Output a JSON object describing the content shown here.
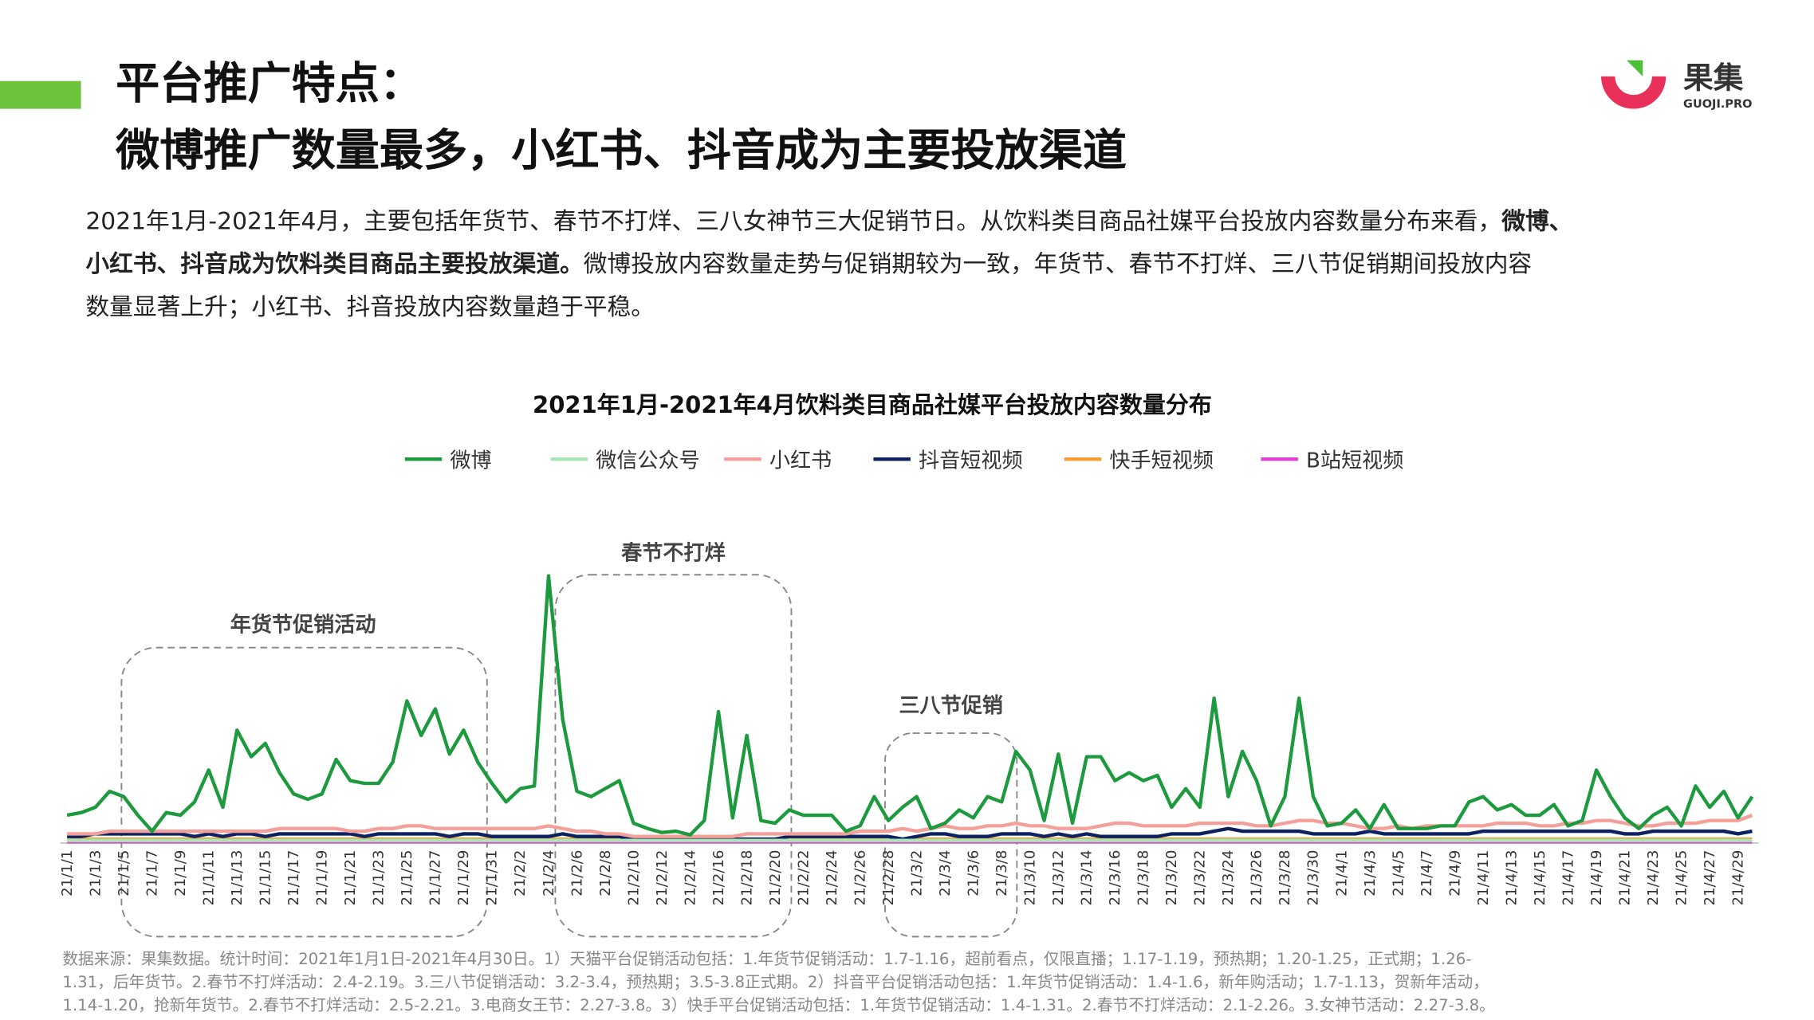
{
  "header": {
    "title_line1": "平台推广特点：",
    "title_line2": "微博推广数量最多，小红书、抖音成为主要投放渠道",
    "logo_text": "果集",
    "logo_sub": "GUOJI.PRO"
  },
  "intro": [
    [
      {
        "text": "2021年1月-2021年4月，主要包括年货节、春节不打烊、三八女神节三大促销节日。从饮料类目商品社媒平台投放内容数量分布来看，",
        "bold": false
      },
      {
        "text": "微博、",
        "bold": true
      }
    ],
    [
      {
        "text": "小红书、抖音成为饮料类目商品主要投放渠道。",
        "bold": true
      },
      {
        "text": "微博投放内容数量走势与促销期较为一致，年货节、春节不打烊、三八节促销期间投放内容",
        "bold": false
      }
    ],
    [
      {
        "text": "数量显著上升；小红书、抖音投放内容数量趋于平稳。",
        "bold": false
      }
    ]
  ],
  "chart_data": {
    "type": "line",
    "title": "2021年1月-2021年4月饮料类目商品社媒平台投放内容数量分布",
    "annotations": [
      "年货节促销活动",
      "春节不打烊",
      "三八节促销"
    ],
    "categories": [
      "21/1/1",
      null,
      "21/1/3",
      null,
      "21/1/5",
      null,
      "21/1/7",
      null,
      "21/1/9",
      null,
      "21/1/11",
      null,
      "21/1/13",
      null,
      "21/1/15",
      null,
      "21/1/17",
      null,
      "21/1/19",
      null,
      "21/1/21",
      null,
      "21/1/23",
      null,
      "21/1/25",
      null,
      "21/1/27",
      null,
      "21/1/29",
      null,
      "21/1/31",
      null,
      "21/2/2",
      null,
      "21/2/4",
      null,
      "21/2/6",
      null,
      "21/2/8",
      null,
      "21/2/10",
      null,
      "21/2/12",
      null,
      "21/2/14",
      null,
      "21/2/16",
      null,
      "21/2/18",
      null,
      "21/2/20",
      null,
      "21/2/22",
      null,
      "21/2/24",
      null,
      "21/2/26",
      null,
      "21/2/28",
      null,
      "21/3/2",
      null,
      "21/3/4",
      null,
      "21/3/6",
      null,
      "21/3/8",
      null,
      "21/3/10",
      null,
      "21/3/12",
      null,
      "21/3/14",
      null,
      "21/3/16",
      null,
      "21/3/18",
      null,
      "21/3/20",
      null,
      "21/3/22",
      null,
      "21/3/24",
      null,
      "21/3/26",
      null,
      "21/3/28",
      null,
      "21/3/30",
      null,
      "21/4/1",
      null,
      "21/4/3",
      null,
      "21/4/5",
      null,
      "21/4/7",
      null,
      "21/4/9",
      null,
      "21/4/11",
      null,
      "21/4/13",
      null,
      "21/4/15",
      null,
      "21/4/17",
      null,
      "21/4/19",
      null,
      "21/4/21",
      null,
      "21/4/23",
      null,
      "21/4/25",
      null,
      "21/4/27",
      null,
      "21/4/29",
      null
    ],
    "ylim": [
      0,
      100
    ],
    "series": [
      {
        "name": "微博",
        "color": "#1e9a3e",
        "values": [
          10,
          11,
          13,
          19,
          17,
          10,
          4,
          11,
          10,
          15,
          27,
          13,
          42,
          32,
          37,
          26,
          18,
          16,
          18,
          31,
          23,
          22,
          22,
          30,
          53,
          40,
          50,
          33,
          42,
          30,
          22,
          15,
          20,
          21,
          100,
          46,
          19,
          17,
          20,
          23,
          7,
          5,
          3.5,
          4,
          2.6,
          8,
          49,
          9,
          40,
          8,
          7,
          12,
          10,
          10,
          10,
          4,
          6,
          17,
          8,
          13,
          17,
          5,
          7,
          12,
          9,
          17,
          15,
          34,
          27,
          8,
          33,
          7,
          32,
          32,
          23,
          26,
          23,
          25,
          13,
          20,
          13,
          54,
          17,
          34,
          23,
          6,
          17,
          54,
          17,
          6,
          7,
          12,
          5,
          14,
          5,
          5,
          5,
          6,
          6,
          15,
          17,
          12,
          14,
          10,
          10,
          14,
          6,
          8,
          27,
          17,
          9,
          5,
          10,
          13,
          6,
          21,
          13,
          19,
          9,
          17
        ]
      },
      {
        "name": "微信公众号",
        "color": "#a8e6b8",
        "values": [
          0.5,
          0.5,
          0.5,
          0.5,
          0.5,
          0.5,
          0.5,
          0.5,
          0.5,
          0.5,
          0.5,
          0.5,
          0.5,
          0.5,
          0.5,
          0.5,
          0.5,
          0.5,
          0.5,
          0.5,
          0.5,
          0.5,
          0.5,
          0.5,
          0.5,
          0.5,
          0.5,
          0.5,
          0.5,
          0.5,
          0.5,
          0.5,
          0.5,
          0.5,
          0.5,
          0.5,
          0.5,
          0.5,
          0.5,
          0.5,
          0.5,
          0.5,
          0.5,
          0.5,
          0.5,
          0.5,
          0.5,
          0.5,
          0.5,
          0.5,
          0.5,
          0.5,
          0.5,
          0.5,
          0.5,
          0.5,
          0.5,
          0.5,
          0.5,
          0.5,
          0.5,
          0.5,
          0.5,
          0.5,
          0.5,
          0.5,
          0.5,
          0.5,
          0.5,
          0.5,
          0.5,
          0.5,
          0.5,
          0.5,
          0.5,
          0.5,
          0.5,
          0.5,
          0.5,
          0.5,
          0.5,
          0.5,
          0.5,
          0.5,
          0.5,
          0.5,
          0.5,
          0.5,
          0.5,
          0.5,
          0.5,
          0.5,
          0.5,
          0.5,
          0.5,
          0.5,
          0.5,
          0.5,
          0.5,
          0.5,
          0.5,
          0.5,
          0.5,
          0.5,
          0.5,
          0.5,
          0.5,
          0.5,
          0.5,
          0.5,
          0.5,
          0.5,
          0.5,
          0.5,
          0.5,
          0.5,
          0.5,
          0.5,
          0.5,
          0.5
        ]
      },
      {
        "name": "小红书",
        "color": "#f4a09a",
        "values": [
          3,
          3,
          3,
          4,
          4,
          4,
          4,
          4,
          4,
          4,
          4,
          4,
          4,
          4,
          4,
          5,
          5,
          5,
          5,
          5,
          4,
          4,
          5,
          5,
          6,
          6,
          5,
          5,
          5,
          5,
          5,
          5,
          5,
          5,
          6,
          5,
          4,
          4,
          3,
          3,
          2,
          2,
          2,
          2,
          2,
          2,
          2,
          2,
          3,
          3,
          3,
          3,
          3,
          3,
          3,
          3,
          4,
          4,
          4,
          5,
          4,
          5,
          6,
          5,
          5,
          6,
          6,
          7,
          6,
          6,
          5,
          5,
          5,
          6,
          7,
          7,
          6,
          6,
          6,
          6,
          7,
          7,
          7,
          7,
          6,
          6,
          7,
          8,
          8,
          7,
          7,
          6,
          5,
          5,
          6,
          5,
          6,
          6,
          6,
          6,
          6,
          7,
          7,
          7,
          6,
          6,
          7,
          7,
          8,
          8,
          7,
          6,
          6,
          7,
          7,
          7,
          8,
          8,
          8,
          10
        ]
      },
      {
        "name": "抖音短视频",
        "color": "#0d2060",
        "values": [
          2,
          2,
          3,
          3,
          3,
          3,
          3,
          3,
          3,
          2,
          3,
          2,
          3,
          3,
          2,
          3,
          3,
          3,
          3,
          3,
          3,
          2,
          3,
          3,
          3,
          3,
          3,
          2,
          3,
          3,
          2,
          2,
          2,
          2,
          2,
          3,
          2,
          2,
          2,
          2,
          1,
          1,
          1,
          1,
          1,
          1,
          1,
          1,
          1,
          1,
          1,
          2,
          2,
          2,
          2,
          2,
          2,
          2,
          2,
          1,
          2,
          3,
          3,
          2,
          2,
          2,
          3,
          3,
          3,
          2,
          3,
          2,
          3,
          2,
          2,
          2,
          2,
          2,
          3,
          3,
          3,
          4,
          5,
          4,
          4,
          4,
          4,
          4,
          3,
          3,
          3,
          3,
          4,
          3,
          3,
          3,
          3,
          3,
          3,
          3,
          4,
          4,
          4,
          4,
          4,
          4,
          4,
          4,
          4,
          4,
          3,
          3,
          4,
          4,
          4,
          4,
          4,
          4,
          3,
          4
        ]
      },
      {
        "name": "快手短视频",
        "color": "#f5a030",
        "values": [
          1,
          1,
          1,
          1,
          1,
          1,
          1,
          1,
          1,
          1,
          1,
          1,
          1,
          1,
          1,
          1,
          1,
          1,
          1,
          1,
          1,
          1,
          1,
          1,
          1,
          1,
          1,
          1,
          1,
          1,
          1,
          1,
          1,
          1,
          1,
          1,
          1,
          1,
          1,
          1,
          1,
          1,
          1,
          1,
          1,
          1,
          1,
          1,
          1,
          1,
          1,
          1,
          1,
          1,
          1,
          1,
          1,
          1,
          1,
          1,
          1,
          1,
          1,
          1,
          1,
          1,
          1,
          1,
          1,
          1,
          1,
          1,
          1,
          1,
          1,
          1,
          1,
          1,
          1,
          1,
          1,
          1,
          1,
          1,
          1,
          1,
          1,
          1,
          1,
          1,
          1,
          1,
          1,
          1,
          1,
          1,
          1,
          1,
          1,
          1,
          1,
          1,
          1,
          1,
          1,
          1,
          1,
          1,
          1,
          1,
          1,
          1,
          1,
          1,
          1,
          1,
          1,
          1,
          1,
          1
        ]
      },
      {
        "name": "B站短视频",
        "color": "#e040d0",
        "values": [
          0,
          0,
          0,
          0,
          0,
          0,
          0,
          0,
          0,
          0,
          0,
          0,
          0,
          0,
          0,
          0,
          0,
          0,
          0,
          0,
          0,
          0,
          0,
          0,
          0,
          0,
          0,
          0,
          0,
          0,
          0,
          0,
          0,
          0,
          0,
          0,
          0,
          0,
          0,
          0,
          0,
          0,
          0,
          0,
          0,
          0,
          0,
          0,
          0,
          0,
          0,
          0,
          0,
          0,
          0,
          0,
          0,
          0,
          0,
          0,
          0,
          0,
          0,
          0,
          0,
          0,
          0,
          0,
          0,
          0,
          0,
          0,
          0,
          0,
          0,
          0,
          0,
          0,
          0,
          0,
          0,
          0,
          0,
          0,
          0,
          0,
          0,
          0,
          0,
          0,
          0,
          0,
          0,
          0,
          0,
          0,
          0,
          0,
          0,
          0,
          0,
          0,
          0,
          0,
          0,
          0,
          0,
          0,
          0,
          0,
          0,
          0,
          0,
          0,
          0,
          0,
          0,
          0,
          0,
          0
        ]
      }
    ]
  },
  "footnote": [
    "数据来源：果集数据。统计时间：2021年1月1日-2021年4月30日。1）天猫平台促销活动包括：1.年货节促销活动：1.7-1.16，超前看点，仅限直播；1.17-1.19，预热期；1.20-1.25，正式期；1.26-",
    "1.31，后年货节。2.春节不打烊活动：2.4-2.19。3.三八节促销活动：3.2-3.4，预热期；3.5-3.8正式期。2）抖音平台促销活动包括：1.年货节促销活动：1.4-1.6，新年购活动；1.7-1.13，贺新年活动，",
    "1.14-1.20，抢新年货节。2.春节不打烊活动：2.5-2.21。3.电商女王节：2.27-3.8。3）快手平台促销活动包括：1.年货节促销活动：1.4-1.31。2.春节不打烊活动：2.1-2.26。3.女神节活动：2.27-3.8。"
  ]
}
